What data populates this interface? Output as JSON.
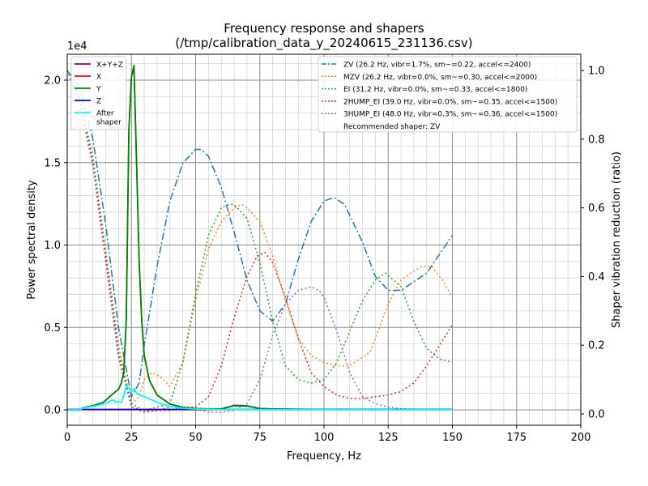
{
  "chart_data": {
    "type": "line",
    "title": "Frequency response and shapers",
    "subtitle": "(/tmp/calibration_data_y_20240615_231136.csv)",
    "xlabel": "Frequency, Hz",
    "ylabel": "Power spectral density",
    "y2label": "Shaper vibration reduction (ratio)",
    "y_exponent_label": "1e4",
    "xlim": [
      0,
      200
    ],
    "ylim": [
      -1000,
      22000
    ],
    "y2lim": [
      -0.025,
      1.05
    ],
    "grid": true,
    "x_ticks": [
      {
        "v": 0,
        "label": "0"
      },
      {
        "v": 25,
        "label": "25"
      },
      {
        "v": 50,
        "label": "50"
      },
      {
        "v": 75,
        "label": "75"
      },
      {
        "v": 100,
        "label": "100"
      },
      {
        "v": 125,
        "label": "125"
      },
      {
        "v": 150,
        "label": "150"
      },
      {
        "v": 175,
        "label": "175"
      },
      {
        "v": 200,
        "label": "200"
      }
    ],
    "y_ticks": [
      {
        "v": 0,
        "label": "0.0"
      },
      {
        "v": 5000,
        "label": "0.5"
      },
      {
        "v": 10000,
        "label": "1.0"
      },
      {
        "v": 15000,
        "label": "1.5"
      },
      {
        "v": 20000,
        "label": "2.0"
      }
    ],
    "y2_ticks": [
      {
        "v": 0,
        "label": "0.0"
      },
      {
        "v": 0.2,
        "label": "0.2"
      },
      {
        "v": 0.4,
        "label": "0.4"
      },
      {
        "v": 0.6,
        "label": "0.6"
      },
      {
        "v": 0.8,
        "label": "0.8"
      },
      {
        "v": 1.0,
        "label": "1.0"
      }
    ],
    "legend_left": {
      "placement": "upper-left",
      "entries": [
        {
          "name": "X+Y+Z",
          "color": "#800080"
        },
        {
          "name": "X",
          "color": "#ff0000"
        },
        {
          "name": "Y",
          "color": "#008000"
        },
        {
          "name": "Z",
          "color": "#0000ff"
        },
        {
          "name": "After\nshaper",
          "color": "#00ffff"
        }
      ]
    },
    "legend_right": {
      "placement": "upper-right",
      "entries": [
        {
          "name": "ZV (26.2 Hz, vibr=1.7%, sm~=0.22, accel<=2400)",
          "color": "#1f77b4",
          "dash": "dashdot"
        },
        {
          "name": "MZV (26.2 Hz, vibr=0.0%, sm~=0.30, accel<=2000)",
          "color": "#ff7f0e",
          "dash": "dotted"
        },
        {
          "name": "EI (31.2 Hz, vibr=0.0%, sm~=0.33, accel<=1800)",
          "color": "#2ca02c",
          "dash": "dotted"
        },
        {
          "name": "2HUMP_EI (39.0 Hz, vibr=0.0%, sm~=0.35, accel<=1500)",
          "color": "#d62728",
          "dash": "dotted"
        },
        {
          "name": "3HUMP_EI (48.0 Hz, vibr=0.3%, sm~=0.36, accel<=1500)",
          "color": "#9467bd",
          "dash": "dotted"
        }
      ],
      "note": "Recommended shaper: ZV"
    },
    "psd_series": [
      {
        "name": "X+Y+Z",
        "color": "#800080",
        "width": 1.5,
        "x": [
          0,
          5,
          6,
          10,
          14,
          18,
          20,
          21,
          22,
          23,
          24,
          25,
          26,
          27,
          28,
          29,
          30,
          32,
          35,
          40,
          45,
          50,
          55,
          60,
          65,
          70,
          75,
          80,
          90,
          100,
          120,
          150
        ],
        "y": [
          0,
          0,
          120,
          250,
          450,
          1000,
          1250,
          1600,
          2200,
          5500,
          17000,
          20200,
          20700,
          15000,
          9000,
          5500,
          3300,
          1800,
          900,
          350,
          150,
          80,
          60,
          60,
          280,
          250,
          90,
          60,
          40,
          30,
          20,
          20
        ]
      },
      {
        "name": "X",
        "color": "#ff0000",
        "width": 1.2,
        "x": [
          0,
          150
        ],
        "y": [
          0,
          0
        ]
      },
      {
        "name": "Y",
        "color": "#008000",
        "width": 1.8,
        "x": [
          0,
          5,
          6,
          10,
          14,
          18,
          20,
          21,
          22,
          23,
          24,
          25,
          26,
          27,
          28,
          29,
          30,
          32,
          35,
          40,
          45,
          50,
          55,
          60,
          65,
          70,
          75,
          80,
          90,
          100,
          120,
          150
        ],
        "y": [
          0,
          0,
          120,
          250,
          450,
          1000,
          1250,
          1600,
          2200,
          5500,
          17000,
          20200,
          20900,
          15000,
          9000,
          5500,
          3300,
          1800,
          900,
          350,
          150,
          80,
          60,
          60,
          250,
          230,
          80,
          50,
          35,
          25,
          20,
          20
        ]
      },
      {
        "name": "Z",
        "color": "#0000ff",
        "width": 1.5,
        "x": [
          0,
          150
        ],
        "y": [
          30,
          30
        ]
      },
      {
        "name": "After shaper",
        "color": "#00ffff",
        "width": 1.8,
        "x": [
          0,
          5,
          6,
          10,
          14,
          18,
          19,
          20,
          21,
          22,
          23,
          24,
          25,
          26,
          27,
          28,
          30,
          33,
          36,
          40,
          45,
          50,
          55,
          60,
          65,
          70,
          80,
          100,
          150
        ],
        "y": [
          0,
          0,
          100,
          200,
          350,
          600,
          450,
          500,
          450,
          800,
          1500,
          1300,
          1100,
          1300,
          1000,
          900,
          800,
          600,
          400,
          200,
          100,
          50,
          30,
          20,
          15,
          15,
          10,
          10,
          10
        ]
      }
    ],
    "shaper_series": [
      {
        "name": "ZV",
        "color": "#1f77b4",
        "dash": "9,3,2,3",
        "width": 1.5,
        "x": [
          0,
          5,
          10,
          15,
          20,
          25,
          28,
          30,
          35,
          40,
          45,
          50,
          52,
          55,
          60,
          65,
          70,
          75,
          80,
          85,
          90,
          95,
          100,
          104,
          108,
          115,
          120,
          125,
          130,
          140,
          150
        ],
        "y": [
          1.0,
          0.95,
          0.8,
          0.55,
          0.25,
          0.05,
          0.09,
          0.2,
          0.43,
          0.62,
          0.73,
          0.77,
          0.77,
          0.75,
          0.66,
          0.53,
          0.39,
          0.3,
          0.27,
          0.32,
          0.45,
          0.56,
          0.62,
          0.63,
          0.61,
          0.5,
          0.4,
          0.36,
          0.36,
          0.41,
          0.52
        ]
      },
      {
        "name": "MZV",
        "color": "#ff7f0e",
        "dash": "2,3",
        "width": 1.5,
        "x": [
          0,
          5,
          10,
          15,
          20,
          25,
          28,
          30,
          33,
          36,
          40,
          45,
          50,
          55,
          60,
          65,
          68,
          70,
          75,
          80,
          85,
          90,
          95,
          100,
          105,
          110,
          118,
          125,
          130,
          138,
          142,
          146,
          150
        ],
        "y": [
          1.0,
          0.92,
          0.75,
          0.48,
          0.2,
          0.03,
          0.05,
          0.1,
          0.12,
          0.11,
          0.08,
          0.15,
          0.33,
          0.48,
          0.56,
          0.6,
          0.61,
          0.6,
          0.56,
          0.46,
          0.33,
          0.22,
          0.17,
          0.15,
          0.14,
          0.14,
          0.18,
          0.32,
          0.39,
          0.43,
          0.43,
          0.39,
          0.34
        ]
      },
      {
        "name": "EI",
        "color": "#2ca02c",
        "dash": "2,3",
        "width": 1.5,
        "x": [
          0,
          5,
          10,
          15,
          20,
          25,
          30,
          35,
          40,
          45,
          50,
          55,
          60,
          63,
          65,
          70,
          75,
          80,
          85,
          90,
          95,
          100,
          105,
          110,
          115,
          120,
          124,
          130,
          135,
          140,
          145,
          150
        ],
        "y": [
          1.0,
          0.92,
          0.74,
          0.46,
          0.18,
          0.03,
          0.01,
          0.02,
          0.03,
          0.15,
          0.35,
          0.52,
          0.6,
          0.61,
          0.61,
          0.57,
          0.44,
          0.27,
          0.14,
          0.1,
          0.09,
          0.1,
          0.15,
          0.24,
          0.33,
          0.39,
          0.41,
          0.37,
          0.27,
          0.19,
          0.16,
          0.15
        ]
      },
      {
        "name": "2HUMP_EI",
        "color": "#d62728",
        "dash": "2,3",
        "width": 1.5,
        "x": [
          0,
          5,
          10,
          15,
          20,
          25,
          30,
          35,
          40,
          45,
          50,
          55,
          60,
          65,
          70,
          74,
          77,
          80,
          85,
          90,
          95,
          100,
          105,
          110,
          115,
          120,
          125,
          130,
          135,
          140,
          145,
          150
        ],
        "y": [
          1.0,
          0.9,
          0.73,
          0.45,
          0.17,
          0.02,
          0.005,
          0.01,
          0.02,
          0.02,
          0.02,
          0.05,
          0.14,
          0.28,
          0.4,
          0.46,
          0.47,
          0.44,
          0.34,
          0.22,
          0.12,
          0.08,
          0.055,
          0.045,
          0.045,
          0.05,
          0.055,
          0.065,
          0.09,
          0.14,
          0.2,
          0.26
        ]
      },
      {
        "name": "3HUMP_EI",
        "color": "#9467bd",
        "dash": "2,3",
        "width": 1.5,
        "x": [
          0,
          5,
          10,
          15,
          20,
          25,
          30,
          35,
          40,
          45,
          50,
          55,
          60,
          65,
          70,
          75,
          80,
          85,
          90,
          95,
          98,
          100,
          105,
          110,
          115,
          120,
          125,
          130,
          140,
          150
        ],
        "y": [
          1.0,
          0.9,
          0.72,
          0.44,
          0.16,
          0.02,
          0.01,
          0.01,
          0.01,
          0.02,
          0.015,
          0.005,
          0.005,
          0.01,
          0.03,
          0.1,
          0.23,
          0.32,
          0.36,
          0.37,
          0.36,
          0.34,
          0.24,
          0.12,
          0.05,
          0.03,
          0.02,
          0.015,
          0.012,
          0.012
        ]
      }
    ]
  }
}
